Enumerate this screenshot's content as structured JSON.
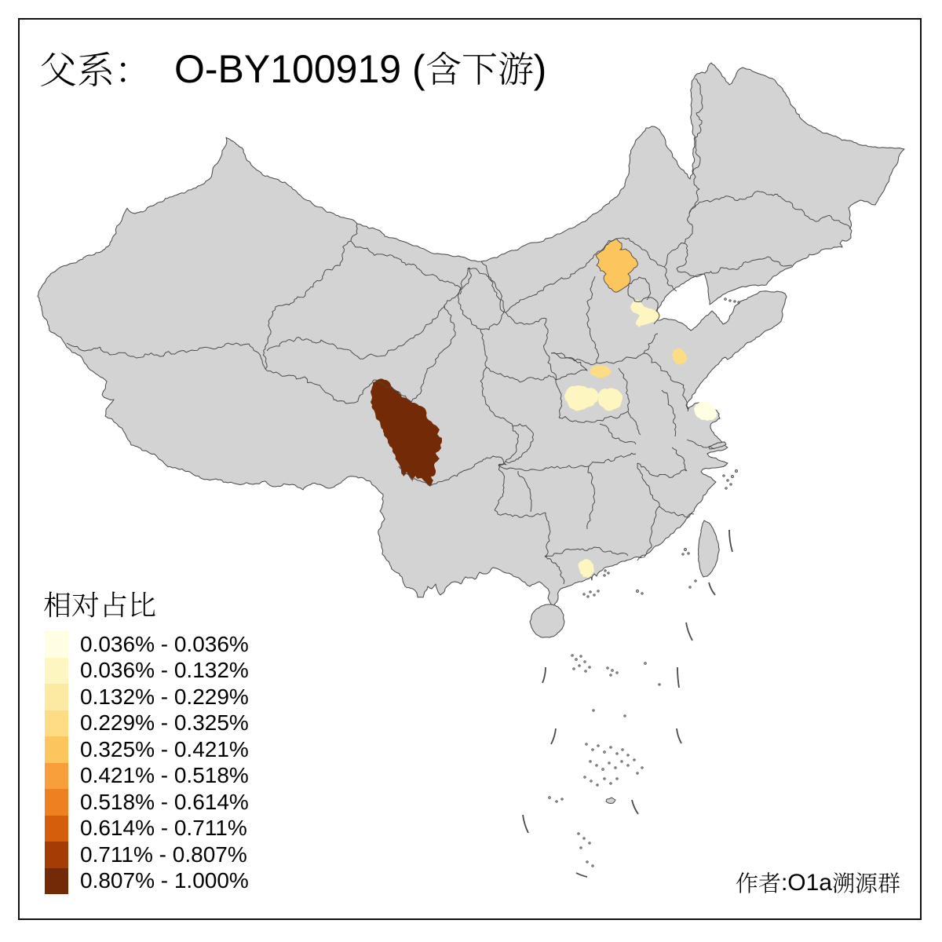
{
  "title": {
    "cjk_prefix": "父系：",
    "latin": "O-BY100919",
    "paren_open": "(",
    "cjk_suffix": "含下游",
    "paren_close": ")",
    "full": "父系： O-BY100919 (含下游)"
  },
  "legend": {
    "title": "相对占比",
    "classes": [
      {
        "range": "0.036% - 0.036%",
        "color": "#FFFEE3"
      },
      {
        "range": "0.036% - 0.132%",
        "color": "#FDF6C0"
      },
      {
        "range": "0.132% - 0.229%",
        "color": "#FDEAA2"
      },
      {
        "range": "0.229% - 0.325%",
        "color": "#FDDC84"
      },
      {
        "range": "0.325% - 0.421%",
        "color": "#FDC55D"
      },
      {
        "range": "0.421% - 0.518%",
        "color": "#F89F3B"
      },
      {
        "range": "0.518% - 0.614%",
        "color": "#EF8022"
      },
      {
        "range": "0.614% - 0.711%",
        "color": "#D55E0D"
      },
      {
        "range": "0.711% - 0.807%",
        "color": "#A63C05"
      },
      {
        "range": "0.807% - 1.000%",
        "color": "#732B07"
      }
    ]
  },
  "author": {
    "cjk_prefix": "作者",
    "colon": ":",
    "latin": "O1a",
    "cjk_suffix": "溯源群",
    "full": "作者:O1a溯源群"
  },
  "map": {
    "land_color": "#D3D3D3",
    "border_color": "#474747",
    "sea_color": "#FFFFFF",
    "frame_color": "#111111",
    "regions": [
      {
        "id": "sichuan-west",
        "class_index": 9,
        "range": "0.807% - 1.000%",
        "color": "#732B07"
      },
      {
        "id": "hebei-north",
        "class_index": 4,
        "range": "0.325% - 0.421%",
        "color": "#FDC55D"
      },
      {
        "id": "tianjin-langfang",
        "class_index": 1,
        "range": "0.036% - 0.132%",
        "color": "#FDF6C0"
      },
      {
        "id": "shandong-mid",
        "class_index": 3,
        "range": "0.229% - 0.325%",
        "color": "#FDDC84"
      },
      {
        "id": "henan-mid",
        "class_index": 3,
        "range": "0.229% - 0.325%",
        "color": "#FDDC84"
      },
      {
        "id": "henan-sw",
        "class_index": 1,
        "range": "0.036% - 0.132%",
        "color": "#FDF6C0"
      },
      {
        "id": "henan-se",
        "class_index": 1,
        "range": "0.036% - 0.132%",
        "color": "#FDF6C0"
      },
      {
        "id": "jiangsu-mid",
        "class_index": 0,
        "range": "0.036% - 0.036%",
        "color": "#FFFEE3"
      },
      {
        "id": "guangdong-mid",
        "class_index": 1,
        "range": "0.036% - 0.132%",
        "color": "#FDF6C0"
      }
    ]
  },
  "chart_data": {
    "type": "choropleth_map",
    "title": "父系： O-BY100919 (含下游)",
    "legend_title": "相对占比",
    "classes": [
      {
        "range": "0.036% - 0.036%",
        "color": "#FFFEE3"
      },
      {
        "range": "0.036% - 0.132%",
        "color": "#FDF6C0"
      },
      {
        "range": "0.132% - 0.229%",
        "color": "#FDEAA2"
      },
      {
        "range": "0.229% - 0.325%",
        "color": "#FDDC84"
      },
      {
        "range": "0.325% - 0.421%",
        "color": "#FDC55D"
      },
      {
        "range": "0.421% - 0.518%",
        "color": "#F89F3B"
      },
      {
        "range": "0.518% - 0.614%",
        "color": "#EF8022"
      },
      {
        "range": "0.614% - 0.711%",
        "color": "#D55E0D"
      },
      {
        "range": "0.711% - 0.807%",
        "color": "#A63C05"
      },
      {
        "range": "0.807% - 1.000%",
        "color": "#732B07"
      }
    ],
    "highlighted_regions": [
      {
        "id": "sichuan-west",
        "value_range": "0.807% - 1.000%",
        "class_index": 9
      },
      {
        "id": "hebei-north",
        "value_range": "0.325% - 0.421%",
        "class_index": 4
      },
      {
        "id": "tianjin-langfang",
        "value_range": "0.036% - 0.132%",
        "class_index": 1
      },
      {
        "id": "shandong-mid",
        "value_range": "0.229% - 0.325%",
        "class_index": 3
      },
      {
        "id": "henan-mid",
        "value_range": "0.229% - 0.325%",
        "class_index": 3
      },
      {
        "id": "henan-sw",
        "value_range": "0.036% - 0.132%",
        "class_index": 1
      },
      {
        "id": "henan-se",
        "value_range": "0.036% - 0.132%",
        "class_index": 1
      },
      {
        "id": "jiangsu-mid",
        "value_range": "0.036% - 0.036%",
        "class_index": 0
      },
      {
        "id": "guangdong-mid",
        "value_range": "0.036% - 0.132%",
        "class_index": 1
      }
    ],
    "base_region": "China (provinces/prefectures), no-data areas gray",
    "author": "作者:O1a溯源群"
  }
}
